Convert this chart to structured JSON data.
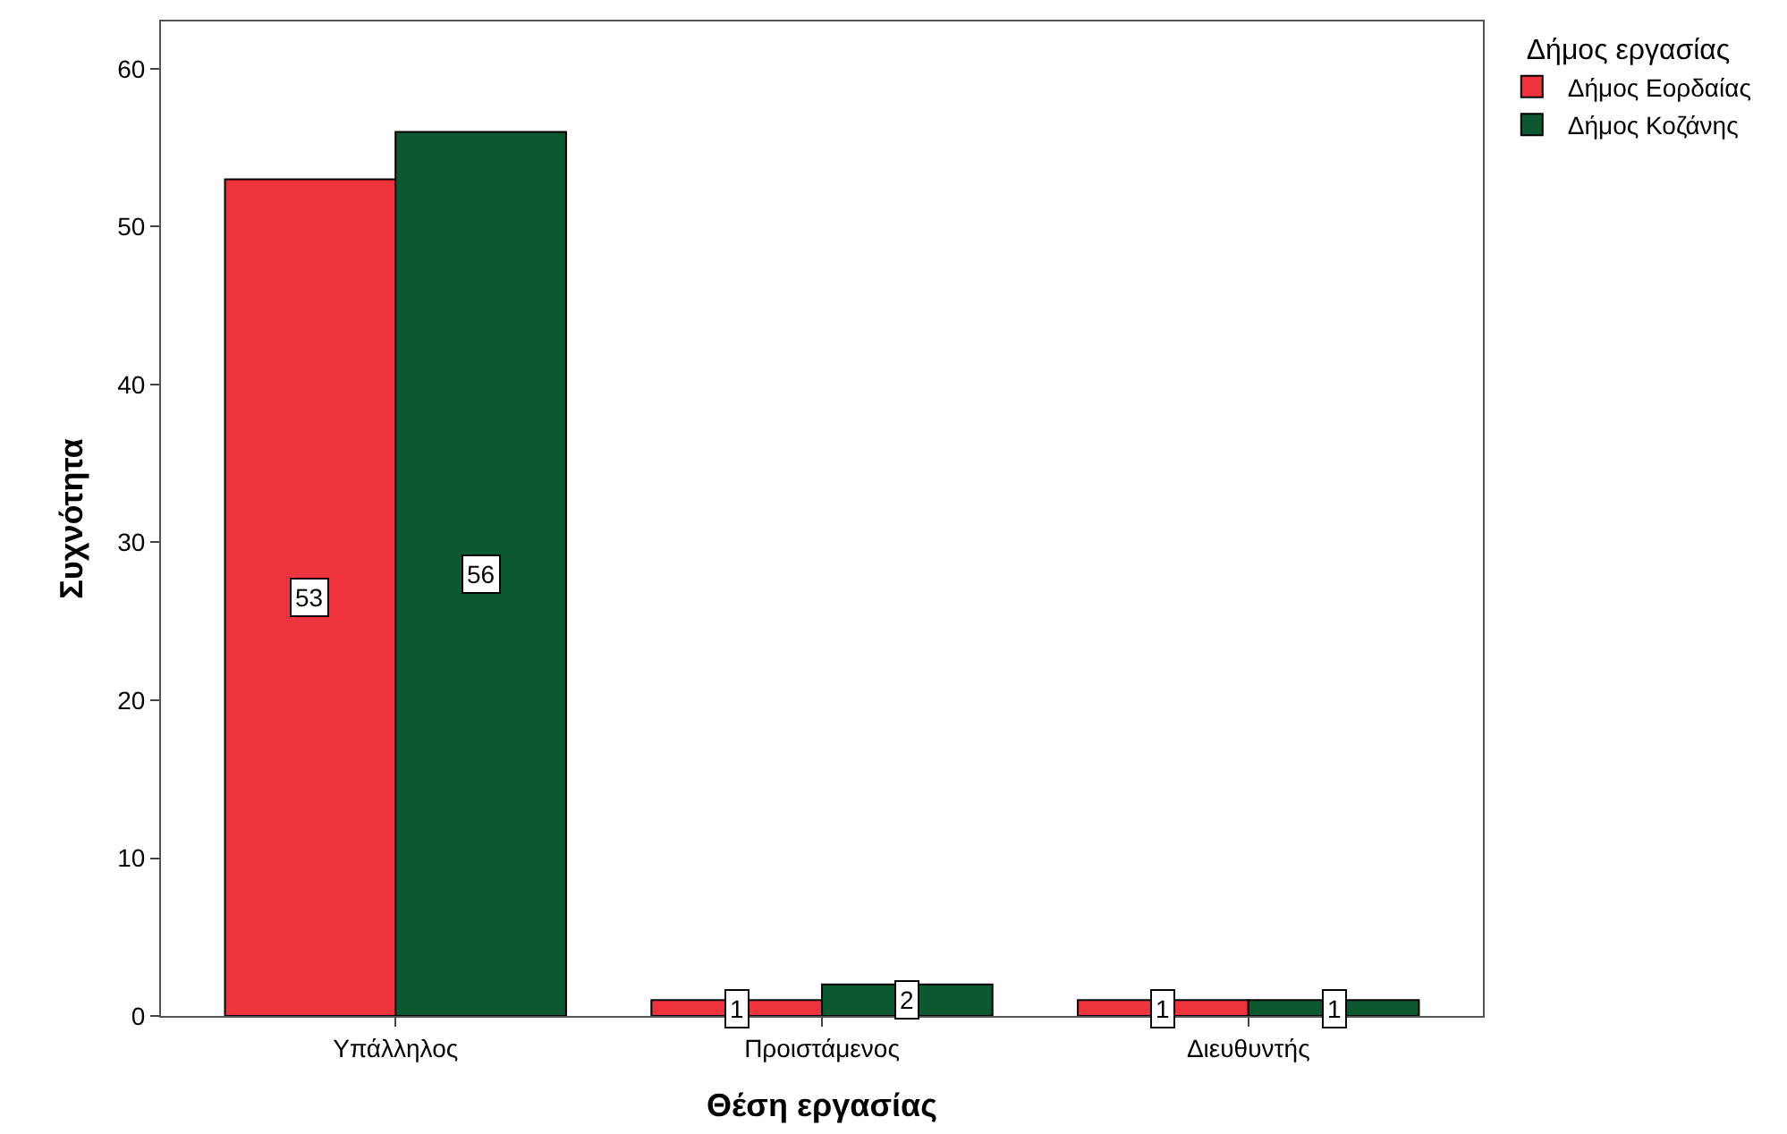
{
  "chart_data": {
    "type": "bar",
    "xlabel": "Θέση εργασίας",
    "ylabel": "Συχνότητα",
    "legend_title": "Δήμος εργασίας",
    "categories": [
      "Υπάλληλος",
      "Προιστάμενος",
      "Διευθυντής"
    ],
    "series": [
      {
        "name": "Δήμος Εορδαίας",
        "color": "#ee333d",
        "values": [
          53,
          1,
          1
        ]
      },
      {
        "name": "Δήμος Κοζάνης",
        "color": "#0c5830",
        "values": [
          56,
          2,
          1
        ]
      }
    ],
    "ylim": [
      0,
      63
    ],
    "yticks": [
      0,
      10,
      20,
      30,
      40,
      50,
      60
    ],
    "grid": false,
    "legend": "top right",
    "data_labels": true
  }
}
